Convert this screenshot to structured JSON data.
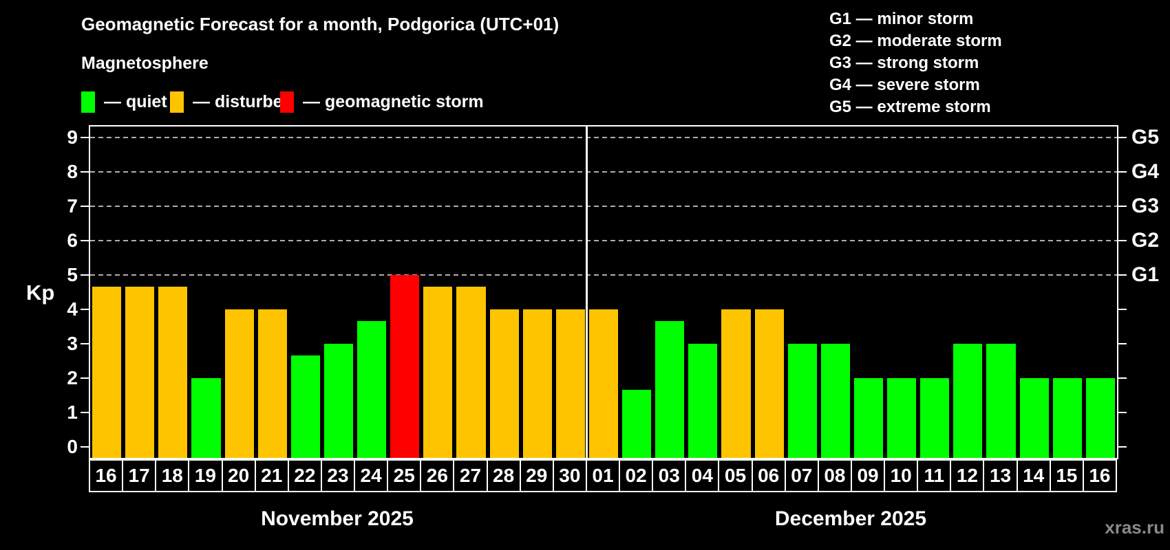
{
  "title": "Geomagnetic Forecast for a month, Podgorica (UTC+01)",
  "subtitle": "Magnetosphere",
  "legend": {
    "items": [
      {
        "key": "quiet",
        "label": "— quiet",
        "color": "#00ff00"
      },
      {
        "key": "disturbed",
        "label": "— disturbed",
        "color": "#ffc400"
      },
      {
        "key": "storm",
        "label": "— geomagnetic storm",
        "color": "#ff0000"
      }
    ]
  },
  "g_scale_legend": [
    {
      "label": "G1 — minor storm"
    },
    {
      "label": "G2 — moderate storm"
    },
    {
      "label": "G3 — strong storm"
    },
    {
      "label": "G4 — severe storm"
    },
    {
      "label": "G5 — extreme storm"
    }
  ],
  "watermark": "xras.ru",
  "chart_data": {
    "type": "bar",
    "title": "Geomagnetic Forecast for a month, Podgorica (UTC+01)",
    "ylabel": "Kp",
    "ylim": [
      0,
      9
    ],
    "y_ticks": [
      0,
      1,
      2,
      3,
      4,
      5,
      6,
      7,
      8,
      9
    ],
    "gridlines_kp": [
      5,
      6,
      7,
      8,
      9
    ],
    "grid": "dashed horizontal at storm levels",
    "legend_position": "top",
    "right_axis": [
      {
        "kp": 5,
        "label": "G1"
      },
      {
        "kp": 6,
        "label": "G2"
      },
      {
        "kp": 7,
        "label": "G3"
      },
      {
        "kp": 8,
        "label": "G4"
      },
      {
        "kp": 9,
        "label": "G5"
      }
    ],
    "months": [
      {
        "label": "November 2025",
        "start_index": 0,
        "count": 15
      },
      {
        "label": "December 2025",
        "start_index": 15,
        "count": 16
      }
    ],
    "status_colors": {
      "quiet": "#00ff00",
      "disturbed": "#ffc400",
      "storm": "#ff0000"
    },
    "categories": [
      "16",
      "17",
      "18",
      "19",
      "20",
      "21",
      "22",
      "23",
      "24",
      "25",
      "26",
      "27",
      "28",
      "29",
      "30",
      "01",
      "02",
      "03",
      "04",
      "05",
      "06",
      "07",
      "08",
      "09",
      "10",
      "11",
      "12",
      "13",
      "14",
      "15",
      "16"
    ],
    "values": [
      4.67,
      4.67,
      4.67,
      2,
      4,
      4,
      2.67,
      3,
      3.67,
      5,
      4.67,
      4.67,
      4,
      4,
      4,
      4,
      1.67,
      3.67,
      3,
      4,
      4,
      3,
      3,
      2,
      2,
      2,
      3,
      3,
      2,
      2,
      2
    ],
    "bars": [
      {
        "day": "16",
        "month": "November 2025",
        "value": 4.67,
        "status": "disturbed"
      },
      {
        "day": "17",
        "month": "November 2025",
        "value": 4.67,
        "status": "disturbed"
      },
      {
        "day": "18",
        "month": "November 2025",
        "value": 4.67,
        "status": "disturbed"
      },
      {
        "day": "19",
        "month": "November 2025",
        "value": 2,
        "status": "quiet"
      },
      {
        "day": "20",
        "month": "November 2025",
        "value": 4,
        "status": "disturbed"
      },
      {
        "day": "21",
        "month": "November 2025",
        "value": 4,
        "status": "disturbed"
      },
      {
        "day": "22",
        "month": "November 2025",
        "value": 2.67,
        "status": "quiet"
      },
      {
        "day": "23",
        "month": "November 2025",
        "value": 3,
        "status": "quiet"
      },
      {
        "day": "24",
        "month": "November 2025",
        "value": 3.67,
        "status": "quiet"
      },
      {
        "day": "25",
        "month": "November 2025",
        "value": 5,
        "status": "storm"
      },
      {
        "day": "26",
        "month": "November 2025",
        "value": 4.67,
        "status": "disturbed"
      },
      {
        "day": "27",
        "month": "November 2025",
        "value": 4.67,
        "status": "disturbed"
      },
      {
        "day": "28",
        "month": "November 2025",
        "value": 4,
        "status": "disturbed"
      },
      {
        "day": "29",
        "month": "November 2025",
        "value": 4,
        "status": "disturbed"
      },
      {
        "day": "30",
        "month": "November 2025",
        "value": 4,
        "status": "disturbed"
      },
      {
        "day": "01",
        "month": "December 2025",
        "value": 4,
        "status": "disturbed"
      },
      {
        "day": "02",
        "month": "December 2025",
        "value": 1.67,
        "status": "quiet"
      },
      {
        "day": "03",
        "month": "December 2025",
        "value": 3.67,
        "status": "quiet"
      },
      {
        "day": "04",
        "month": "December 2025",
        "value": 3,
        "status": "quiet"
      },
      {
        "day": "05",
        "month": "December 2025",
        "value": 4,
        "status": "disturbed"
      },
      {
        "day": "06",
        "month": "December 2025",
        "value": 4,
        "status": "disturbed"
      },
      {
        "day": "07",
        "month": "December 2025",
        "value": 3,
        "status": "quiet"
      },
      {
        "day": "08",
        "month": "December 2025",
        "value": 3,
        "status": "quiet"
      },
      {
        "day": "09",
        "month": "December 2025",
        "value": 2,
        "status": "quiet"
      },
      {
        "day": "10",
        "month": "December 2025",
        "value": 2,
        "status": "quiet"
      },
      {
        "day": "11",
        "month": "December 2025",
        "value": 2,
        "status": "quiet"
      },
      {
        "day": "12",
        "month": "December 2025",
        "value": 3,
        "status": "quiet"
      },
      {
        "day": "13",
        "month": "December 2025",
        "value": 3,
        "status": "quiet"
      },
      {
        "day": "14",
        "month": "December 2025",
        "value": 2,
        "status": "quiet"
      },
      {
        "day": "15",
        "month": "December 2025",
        "value": 2,
        "status": "quiet"
      },
      {
        "day": "16",
        "month": "December 2025",
        "value": 2,
        "status": "quiet"
      }
    ]
  }
}
